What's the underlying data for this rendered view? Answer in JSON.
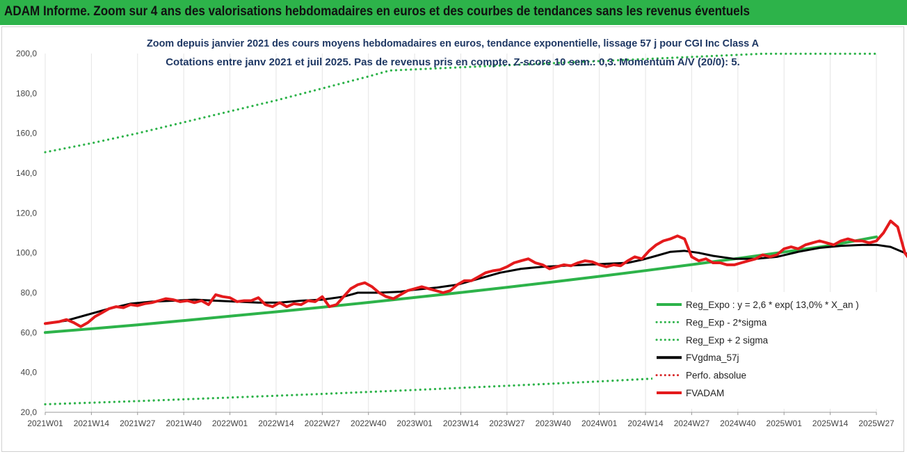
{
  "banner": {
    "title": "ADAM Informe. Zoom sur 4 ans des valorisations hebdomadaires en euros et des courbes de tendances sans les revenus éventuels",
    "color": "#2db34a"
  },
  "chart_data": {
    "type": "line",
    "title": "Zoom depuis janvier 2021 des cours moyens hebdomadaires en euros, tendance exponentielle, lissage 57 j pour CGI Inc Class A",
    "subtitle": "Cotations entre janv 2021 et juil 2025. Pas de revenus pris en compte. Z-score 10 sem.: 0,3. Momentum A/V (20/0): 5.",
    "xlabel": "",
    "ylabel": "",
    "ylim": [
      20,
      200
    ],
    "yticks": [
      "20,0",
      "40,0",
      "60,0",
      "80,0",
      "100,0",
      "120,0",
      "140,0",
      "160,0",
      "180,0",
      "200,0"
    ],
    "xticks": [
      "2021W01",
      "2021W14",
      "2021W27",
      "2021W40",
      "2022W01",
      "2022W14",
      "2022W27",
      "2022W40",
      "2023W01",
      "2023W14",
      "2023W27",
      "2023W40",
      "2024W01",
      "2024W14",
      "2024W27",
      "2024W40",
      "2025W01",
      "2025W14",
      "2025W27"
    ],
    "grid": "vertical",
    "legend_position": "bottom-right",
    "series": [
      {
        "name": "Reg_Expo : y = 2,6 * exp( 13,0% *  X_an )",
        "color": "#2db34a",
        "style": "solid",
        "points": [
          [
            0,
            60
          ],
          [
            13,
            61.9
          ],
          [
            26,
            63.9
          ],
          [
            39,
            66
          ],
          [
            52,
            68.2
          ],
          [
            65,
            70.4
          ],
          [
            78,
            72.7
          ],
          [
            91,
            75.1
          ],
          [
            104,
            77.6
          ],
          [
            117,
            80.1
          ],
          [
            130,
            82.7
          ],
          [
            143,
            85.4
          ],
          [
            156,
            88.2
          ],
          [
            169,
            91.1
          ],
          [
            182,
            94.1
          ],
          [
            195,
            97.2
          ],
          [
            208,
            100.4
          ],
          [
            221,
            103.7
          ],
          [
            234,
            108
          ]
        ]
      },
      {
        "name": "Reg_Exp - 2*sigma",
        "color": "#2db34a",
        "style": "dotted",
        "points": [
          [
            0,
            24
          ],
          [
            26,
            25.6
          ],
          [
            52,
            27.4
          ],
          [
            78,
            29.2
          ],
          [
            104,
            31.2
          ],
          [
            130,
            33.3
          ],
          [
            156,
            35.5
          ],
          [
            182,
            37.9
          ],
          [
            208,
            40.3
          ],
          [
            234,
            43
          ]
        ]
      },
      {
        "name": "Reg_Exp + 2 sigma",
        "color": "#2db34a",
        "style": "dotted",
        "points": [
          [
            0,
            150.5
          ],
          [
            13,
            155
          ],
          [
            26,
            160
          ],
          [
            39,
            165.5
          ],
          [
            52,
            171
          ],
          [
            65,
            176.5
          ],
          [
            78,
            182.5
          ],
          [
            91,
            188.5
          ],
          [
            97,
            191.5
          ],
          [
            202,
            199.9
          ],
          [
            234,
            199.9
          ]
        ]
      },
      {
        "name": "FVgdma_57j",
        "color": "#000000",
        "style": "solid",
        "points": [
          [
            0,
            64.5
          ],
          [
            6,
            66
          ],
          [
            12,
            69
          ],
          [
            18,
            72
          ],
          [
            24,
            74.5
          ],
          [
            30,
            75.5
          ],
          [
            36,
            76
          ],
          [
            42,
            76.5
          ],
          [
            48,
            76
          ],
          [
            54,
            75.5
          ],
          [
            60,
            75
          ],
          [
            66,
            75
          ],
          [
            72,
            76
          ],
          [
            78,
            76.5
          ],
          [
            84,
            78
          ],
          [
            88,
            80
          ],
          [
            94,
            80
          ],
          [
            100,
            80.5
          ],
          [
            104,
            81.5
          ],
          [
            110,
            82.5
          ],
          [
            116,
            84
          ],
          [
            122,
            87
          ],
          [
            128,
            90
          ],
          [
            134,
            92
          ],
          [
            140,
            93
          ],
          [
            146,
            93.5
          ],
          [
            152,
            94
          ],
          [
            158,
            94.5
          ],
          [
            164,
            95
          ],
          [
            168,
            96.5
          ],
          [
            172,
            98.5
          ],
          [
            176,
            100.5
          ],
          [
            180,
            101
          ],
          [
            184,
            100
          ],
          [
            188,
            98.5
          ],
          [
            194,
            97
          ],
          [
            200,
            97
          ],
          [
            206,
            98
          ],
          [
            212,
            100.5
          ],
          [
            218,
            102.5
          ],
          [
            224,
            103.5
          ],
          [
            230,
            104
          ],
          [
            234,
            104
          ],
          [
            238,
            103
          ],
          [
            242,
            100
          ],
          [
            246,
            97
          ],
          [
            250,
            95
          ],
          [
            256,
            94
          ],
          [
            262,
            93
          ],
          [
            267,
            91.5
          ]
        ]
      },
      {
        "name": "Perfo. absolue",
        "color": "#d62728",
        "style": "dotted",
        "points": []
      },
      {
        "name": "FVADAM",
        "color": "#e41a1c",
        "style": "solid",
        "points": [
          [
            0,
            64.5
          ],
          [
            2,
            65
          ],
          [
            4,
            65.5
          ],
          [
            6,
            66.5
          ],
          [
            8,
            65
          ],
          [
            10,
            63
          ],
          [
            12,
            65
          ],
          [
            14,
            68
          ],
          [
            16,
            70
          ],
          [
            18,
            72
          ],
          [
            20,
            73
          ],
          [
            22,
            72.5
          ],
          [
            24,
            74
          ],
          [
            26,
            73.5
          ],
          [
            28,
            74.5
          ],
          [
            30,
            75
          ],
          [
            32,
            76
          ],
          [
            34,
            77
          ],
          [
            36,
            76.5
          ],
          [
            38,
            75.5
          ],
          [
            40,
            76
          ],
          [
            42,
            75
          ],
          [
            44,
            76
          ],
          [
            46,
            74
          ],
          [
            48,
            79
          ],
          [
            50,
            78
          ],
          [
            52,
            77.5
          ],
          [
            54,
            75.5
          ],
          [
            56,
            76
          ],
          [
            58,
            76
          ],
          [
            60,
            77.5
          ],
          [
            62,
            74
          ],
          [
            64,
            73
          ],
          [
            66,
            75
          ],
          [
            68,
            73
          ],
          [
            70,
            74.5
          ],
          [
            72,
            74
          ],
          [
            74,
            76
          ],
          [
            76,
            75.5
          ],
          [
            78,
            78
          ],
          [
            80,
            73
          ],
          [
            82,
            74
          ],
          [
            84,
            78
          ],
          [
            86,
            82
          ],
          [
            88,
            84
          ],
          [
            90,
            85
          ],
          [
            92,
            83
          ],
          [
            94,
            80
          ],
          [
            96,
            78
          ],
          [
            98,
            77
          ],
          [
            100,
            79
          ],
          [
            102,
            81
          ],
          [
            104,
            82
          ],
          [
            106,
            83
          ],
          [
            108,
            82
          ],
          [
            110,
            81
          ],
          [
            112,
            80
          ],
          [
            114,
            81
          ],
          [
            116,
            84
          ],
          [
            118,
            86
          ],
          [
            120,
            86
          ],
          [
            122,
            88
          ],
          [
            124,
            90
          ],
          [
            126,
            91
          ],
          [
            128,
            91.5
          ],
          [
            130,
            93
          ],
          [
            132,
            95
          ],
          [
            134,
            96
          ],
          [
            136,
            97
          ],
          [
            138,
            95
          ],
          [
            140,
            94
          ],
          [
            142,
            92
          ],
          [
            144,
            93
          ],
          [
            146,
            94
          ],
          [
            148,
            93.5
          ],
          [
            150,
            95
          ],
          [
            152,
            96
          ],
          [
            154,
            95.5
          ],
          [
            156,
            94
          ],
          [
            158,
            93
          ],
          [
            160,
            94
          ],
          [
            162,
            93.5
          ],
          [
            164,
            96
          ],
          [
            166,
            98
          ],
          [
            168,
            97
          ],
          [
            170,
            101
          ],
          [
            172,
            104
          ],
          [
            174,
            106
          ],
          [
            176,
            107
          ],
          [
            178,
            108.5
          ],
          [
            180,
            107
          ],
          [
            182,
            98
          ],
          [
            184,
            96
          ],
          [
            186,
            97
          ],
          [
            188,
            95
          ],
          [
            190,
            95
          ],
          [
            192,
            94
          ],
          [
            194,
            94
          ],
          [
            196,
            95
          ],
          [
            198,
            96
          ],
          [
            200,
            97
          ],
          [
            202,
            99
          ],
          [
            204,
            98
          ],
          [
            206,
            99
          ],
          [
            208,
            102
          ],
          [
            210,
            103
          ],
          [
            212,
            102
          ],
          [
            214,
            104
          ],
          [
            216,
            105
          ],
          [
            218,
            106
          ],
          [
            220,
            105
          ],
          [
            222,
            104
          ],
          [
            224,
            106
          ],
          [
            226,
            107
          ],
          [
            228,
            106
          ],
          [
            230,
            106
          ],
          [
            232,
            105
          ],
          [
            234,
            106
          ],
          [
            236,
            110
          ],
          [
            238,
            116
          ],
          [
            240,
            113
          ],
          [
            242,
            100
          ],
          [
            244,
            95
          ],
          [
            246,
            92
          ],
          [
            248,
            91
          ],
          [
            250,
            89
          ],
          [
            252,
            91
          ],
          [
            254,
            92
          ],
          [
            256,
            93
          ],
          [
            258,
            95
          ],
          [
            260,
            96
          ],
          [
            262,
            95.5
          ],
          [
            264,
            94.5
          ],
          [
            266,
            92
          ],
          [
            267,
            89.5
          ]
        ]
      }
    ]
  }
}
